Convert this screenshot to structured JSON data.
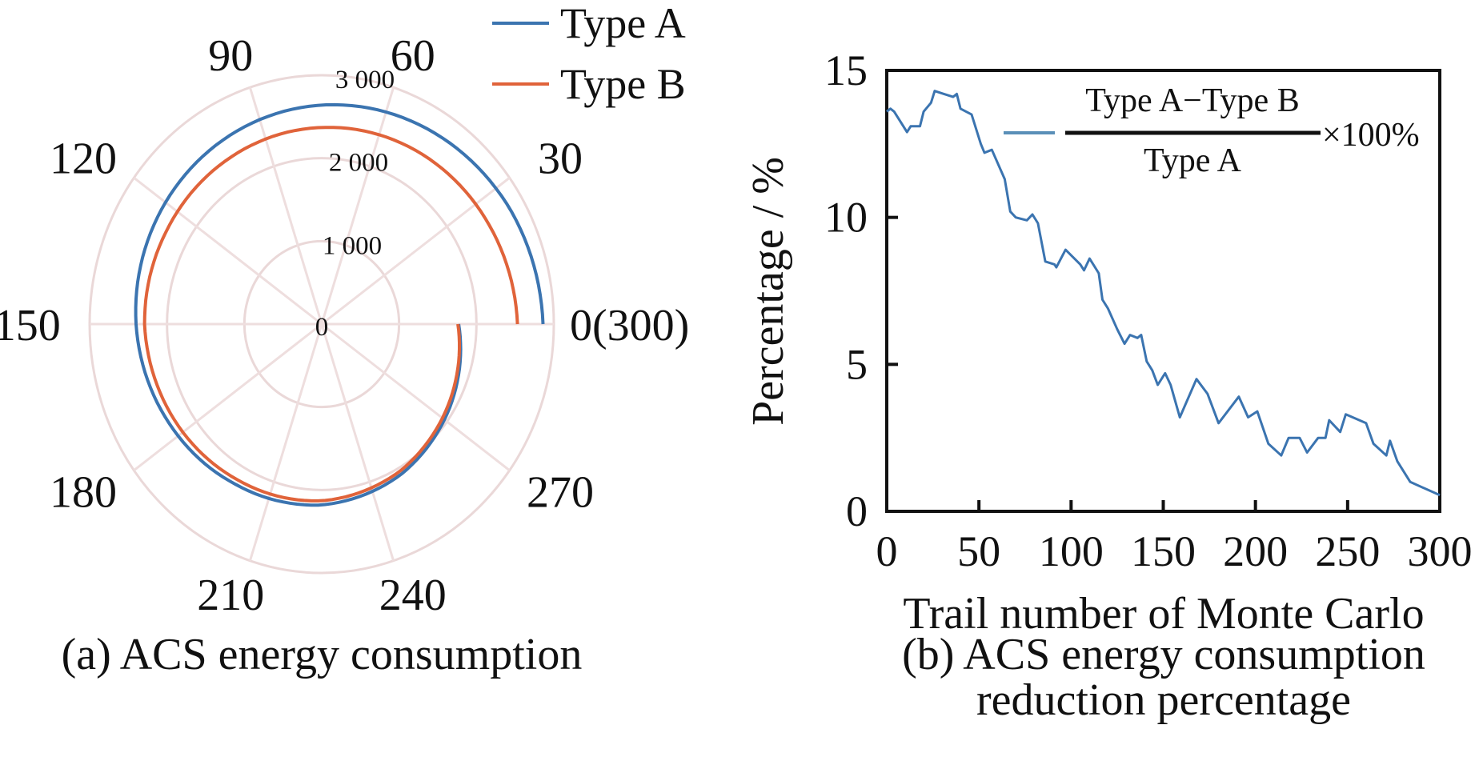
{
  "chart_data": [
    {
      "type": "polar-line",
      "panel": "a",
      "caption": "(a) ACS energy consumption",
      "angular_axis": {
        "range": [
          0,
          300
        ],
        "direction": "counterclockwise",
        "zero_position": "right",
        "ticks": [
          0,
          30,
          60,
          90,
          120,
          150,
          180,
          210,
          240,
          270
        ],
        "tick_labels": [
          "0(300)",
          "30",
          "60",
          "90",
          "120",
          "150",
          "180",
          "210",
          "240",
          "270"
        ]
      },
      "radial_axis": {
        "range": [
          0,
          3000
        ],
        "ticks": [
          0,
          1000,
          2000,
          3000
        ],
        "tick_labels": [
          "0",
          "1 000",
          "2 000",
          "3 000"
        ]
      },
      "grid": true,
      "legend": {
        "position": "top-right",
        "entries": [
          "Type A",
          "Type B"
        ]
      },
      "series": [
        {
          "name": "Type A",
          "color": "#3b74b0",
          "x": [
            0,
            25,
            50,
            75,
            100,
            125,
            150,
            175,
            200,
            225,
            250,
            275,
            300
          ],
          "values": [
            2860,
            2800,
            2720,
            2640,
            2560,
            2480,
            2400,
            2310,
            2230,
            2180,
            2080,
            1930,
            1770
          ]
        },
        {
          "name": "Type B",
          "color": "#e0633a",
          "x": [
            0,
            25,
            50,
            75,
            100,
            125,
            150,
            175,
            200,
            225,
            250,
            275,
            300
          ],
          "values": [
            2530,
            2470,
            2420,
            2370,
            2330,
            2300,
            2290,
            2230,
            2170,
            2130,
            2040,
            1900,
            1760
          ]
        }
      ]
    },
    {
      "type": "line",
      "panel": "b",
      "caption_lines": [
        "(b) ACS energy consumption",
        "reduction percentage"
      ],
      "xlabel": "Trail number of Monte Carlo",
      "ylabel": "Percentage / %",
      "xlim": [
        0,
        300
      ],
      "ylim": [
        0,
        15
      ],
      "xticks": [
        0,
        50,
        100,
        150,
        200,
        250,
        300
      ],
      "yticks": [
        0,
        5,
        10,
        15
      ],
      "grid": false,
      "legend": {
        "position": "top-right",
        "numerator": "Type A−Type B",
        "denominator": "Type A",
        "suffix": "×100%"
      },
      "series": [
        {
          "name": "(Type A−Type B)/Type A ×100%",
          "color": "#3b74b0",
          "x": [
            0,
            2,
            4,
            8,
            11,
            13,
            18,
            20,
            24,
            26,
            31,
            36,
            38,
            40,
            46,
            51,
            53,
            57,
            64,
            67,
            70,
            76,
            79,
            82,
            86,
            91,
            92,
            97,
            105,
            107,
            110,
            115,
            117,
            120,
            125,
            129,
            132,
            136,
            138,
            141,
            144,
            147,
            151,
            154,
            159,
            168,
            174,
            180,
            191,
            196,
            201,
            207,
            214,
            218,
            224,
            228,
            234,
            238,
            240,
            246,
            249,
            260,
            264,
            271,
            273,
            277,
            284,
            300
          ],
          "values": [
            13.6,
            13.7,
            13.6,
            13.2,
            12.9,
            13.1,
            13.1,
            13.6,
            13.9,
            14.3,
            14.2,
            14.1,
            14.2,
            13.7,
            13.5,
            12.5,
            12.2,
            12.3,
            11.3,
            10.2,
            10.0,
            9.9,
            10.1,
            9.8,
            8.5,
            8.4,
            8.3,
            8.9,
            8.4,
            8.2,
            8.6,
            8.1,
            7.2,
            6.9,
            6.2,
            5.7,
            6.0,
            5.9,
            6.0,
            5.1,
            4.8,
            4.3,
            4.7,
            4.3,
            3.2,
            4.5,
            4.0,
            3.0,
            3.9,
            3.2,
            3.4,
            2.3,
            1.9,
            2.5,
            2.5,
            2.0,
            2.5,
            2.5,
            3.1,
            2.7,
            3.3,
            3.0,
            2.3,
            1.9,
            2.4,
            1.7,
            1.0,
            0.55
          ]
        }
      ]
    }
  ]
}
